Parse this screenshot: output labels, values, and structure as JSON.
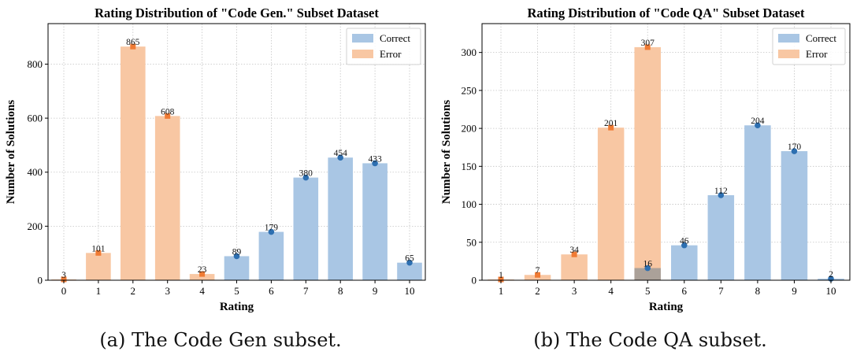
{
  "captions": [
    "(a) The Code Gen subset.",
    "(b) The Code QA subset."
  ],
  "colors": {
    "correct_bar": "#a9c6e4",
    "error_bar": "#f8c7a3",
    "correct_marker": "#2d6fb1",
    "error_marker": "#f07b34"
  },
  "chart_data": [
    {
      "type": "bar",
      "title": "Rating Distribution of \"Code Gen.\" Subset Dataset",
      "xlabel": "Rating",
      "ylabel": "Number of Solutions",
      "ylim": [
        0,
        950
      ],
      "yticks": [
        0,
        200,
        400,
        600,
        800
      ],
      "grid": true,
      "legend_position": "top-right",
      "categories": [
        "0",
        "1",
        "2",
        "3",
        "4",
        "5",
        "6",
        "7",
        "8",
        "9",
        "10"
      ],
      "series": [
        {
          "name": "Correct",
          "values": [
            0,
            0,
            0,
            0,
            0,
            89,
            179,
            380,
            454,
            433,
            65
          ]
        },
        {
          "name": "Error",
          "values": [
            3,
            101,
            865,
            608,
            23,
            0,
            0,
            0,
            0,
            0,
            0
          ]
        }
      ],
      "data_labels": [
        "3",
        "101",
        "865",
        "608",
        "23",
        "89",
        "179",
        "380",
        "454",
        "433",
        "65"
      ]
    },
    {
      "type": "bar",
      "title": "Rating Distribution of \"Code QA\" Subset Dataset",
      "xlabel": "Rating",
      "ylabel": "Number of Solutions",
      "ylim": [
        0,
        338
      ],
      "yticks": [
        0,
        50,
        100,
        150,
        200,
        250,
        300
      ],
      "grid": true,
      "legend_position": "top-right",
      "categories": [
        "1",
        "2",
        "3",
        "4",
        "5",
        "6",
        "7",
        "8",
        "9",
        "10"
      ],
      "series": [
        {
          "name": "Correct",
          "values": [
            0,
            0,
            0,
            0,
            16,
            46,
            112,
            204,
            170,
            2
          ]
        },
        {
          "name": "Error",
          "values": [
            1,
            7,
            34,
            201,
            307,
            0,
            0,
            0,
            0,
            0
          ]
        }
      ],
      "data_labels": [
        "1",
        "7",
        "34",
        "201",
        "307",
        "46",
        "112",
        "204",
        "170",
        "2"
      ],
      "extra_labels": [
        {
          "category": "5",
          "value": 16,
          "text": "16"
        }
      ]
    }
  ]
}
